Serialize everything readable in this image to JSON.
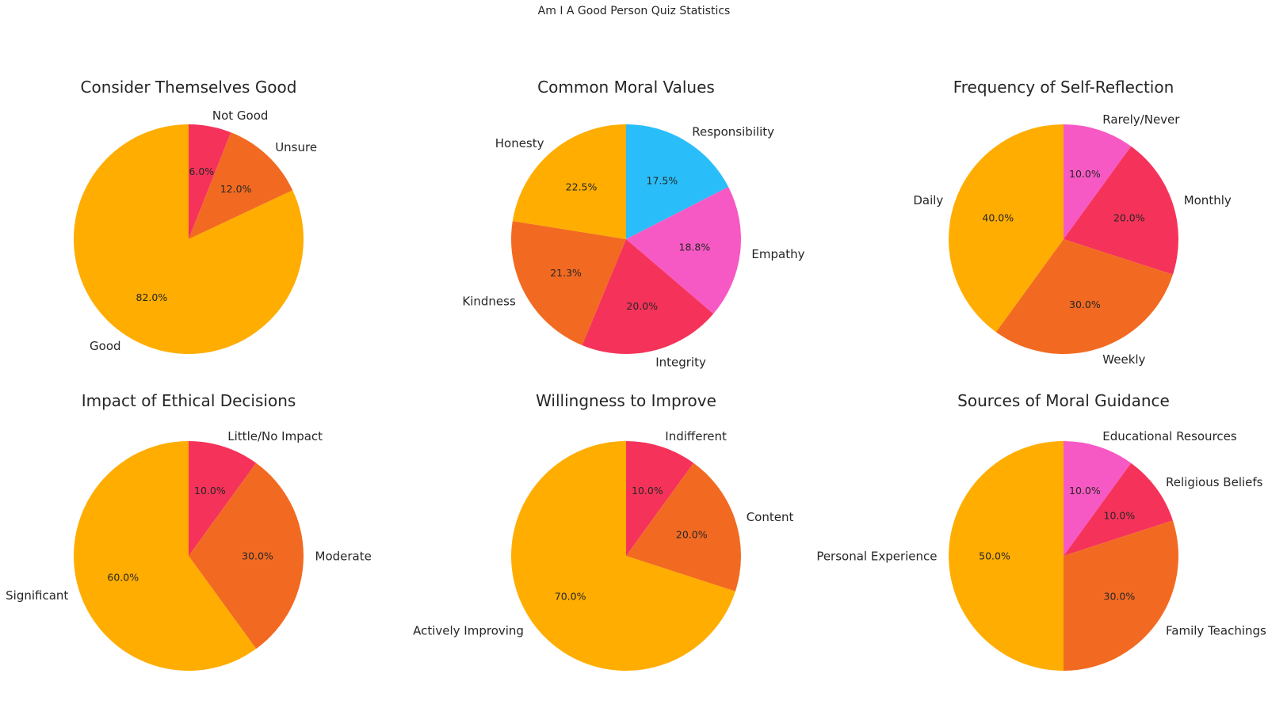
{
  "figure": {
    "title": "Am I A Good Person Quiz Statistics"
  },
  "colors": {
    "orange_yellow": "#FFAD00",
    "orange": "#F26A21",
    "red": "#F5335A",
    "pink": "#F759C4",
    "blue": "#29BEF9",
    "text": "#262626"
  },
  "chart_data": [
    {
      "type": "pie",
      "title": "Consider Themselves Good",
      "labels": [
        "Not Good",
        "Unsure",
        "Good"
      ],
      "values": [
        6.0,
        12.0,
        82.0
      ],
      "percent_labels": [
        "6.0%",
        "12.0%",
        "82.0%"
      ],
      "colors": [
        "#F5335A",
        "#F26A21",
        "#FFAD00"
      ],
      "start_angle_deg": 90,
      "direction": "clockwise"
    },
    {
      "type": "pie",
      "title": "Common Moral Values",
      "labels": [
        "Responsibility",
        "Empathy",
        "Integrity",
        "Kindness",
        "Honesty"
      ],
      "values": [
        17.5,
        18.8,
        20.0,
        21.3,
        22.5
      ],
      "percent_labels": [
        "17.5%",
        "18.8%",
        "20.0%",
        "21.3%",
        "22.5%"
      ],
      "colors": [
        "#29BEF9",
        "#F759C4",
        "#F5335A",
        "#F26A21",
        "#FFAD00"
      ],
      "start_angle_deg": 90,
      "direction": "clockwise"
    },
    {
      "type": "pie",
      "title": "Frequency of Self-Reflection",
      "labels": [
        "Rarely/Never",
        "Monthly",
        "Weekly",
        "Daily"
      ],
      "values": [
        10.0,
        20.0,
        30.0,
        40.0
      ],
      "percent_labels": [
        "10.0%",
        "20.0%",
        "30.0%",
        "40.0%"
      ],
      "colors": [
        "#F759C4",
        "#F5335A",
        "#F26A21",
        "#FFAD00"
      ],
      "start_angle_deg": 90,
      "direction": "clockwise"
    },
    {
      "type": "pie",
      "title": "Impact of Ethical Decisions",
      "labels": [
        "Little/No Impact",
        "Moderate",
        "Significant"
      ],
      "values": [
        10.0,
        30.0,
        60.0
      ],
      "percent_labels": [
        "10.0%",
        "30.0%",
        "60.0%"
      ],
      "colors": [
        "#F5335A",
        "#F26A21",
        "#FFAD00"
      ],
      "start_angle_deg": 90,
      "direction": "clockwise"
    },
    {
      "type": "pie",
      "title": "Willingness to Improve",
      "labels": [
        "Indifferent",
        "Content",
        "Actively Improving"
      ],
      "values": [
        10.0,
        20.0,
        70.0
      ],
      "percent_labels": [
        "10.0%",
        "20.0%",
        "70.0%"
      ],
      "colors": [
        "#F5335A",
        "#F26A21",
        "#FFAD00"
      ],
      "start_angle_deg": 90,
      "direction": "clockwise"
    },
    {
      "type": "pie",
      "title": "Sources of Moral Guidance",
      "labels": [
        "Educational Resources",
        "Religious Beliefs",
        "Family Teachings",
        "Personal Experience"
      ],
      "values": [
        10.0,
        10.0,
        30.0,
        50.0
      ],
      "percent_labels": [
        "10.0%",
        "10.0%",
        "30.0%",
        "50.0%"
      ],
      "colors": [
        "#F759C4",
        "#F5335A",
        "#F26A21",
        "#FFAD00"
      ],
      "start_angle_deg": 90,
      "direction": "clockwise"
    }
  ]
}
